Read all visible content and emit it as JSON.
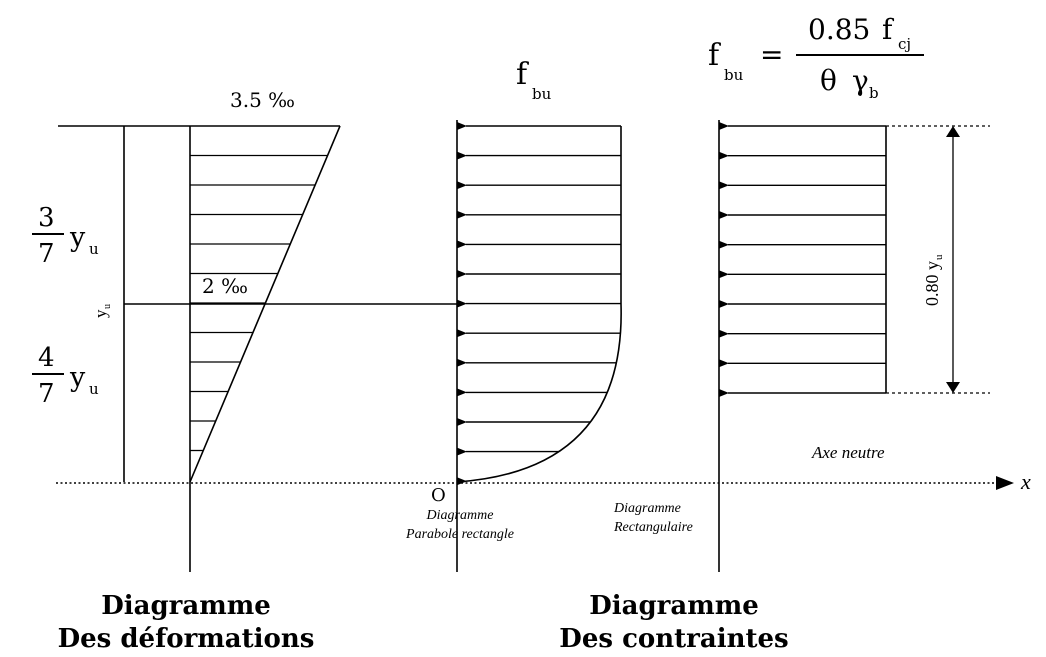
{
  "strain_diagram": {
    "top_strain_label": "3.5 ‰",
    "mid_strain_label": "2 ‰",
    "upper_fraction": {
      "numerator": "3",
      "denominator": "7",
      "variable": "y",
      "subscript": "u"
    },
    "lower_fraction": {
      "numerator": "4",
      "denominator": "7",
      "variable": "y",
      "subscript": "u"
    },
    "yu_label": {
      "variable": "y",
      "subscript": "u"
    },
    "caption_line1": "Diagramme",
    "caption_line2": "Des déformations"
  },
  "parabola_diagram": {
    "fbu_label": {
      "variable": "f",
      "subscript": "bu"
    },
    "origin_label": "O",
    "sub_caption_line1": "Diagramme",
    "sub_caption_line2": "Parabole rectangle",
    "arrow_count": 13
  },
  "rect_diagram": {
    "formula": {
      "lhs_variable": "f",
      "lhs_subscript": "bu",
      "equals": "=",
      "numerator_coefficient": "0.85",
      "numerator_variable": "f",
      "numerator_subscript": "cj",
      "denominator_theta": "θ",
      "denominator_gamma": "γ",
      "denominator_subscript": "b"
    },
    "height_label": {
      "text": "0.80",
      "variable": "y",
      "subscript": "u"
    },
    "neutral_axis_label": "Axe neutre",
    "sub_caption_line1": "Diagramme",
    "sub_caption_line2": "Rectangulaire",
    "arrow_count": 10
  },
  "x_axis_label": "x",
  "stress_caption_line1": "Diagramme",
  "stress_caption_line2": "Des contraintes"
}
